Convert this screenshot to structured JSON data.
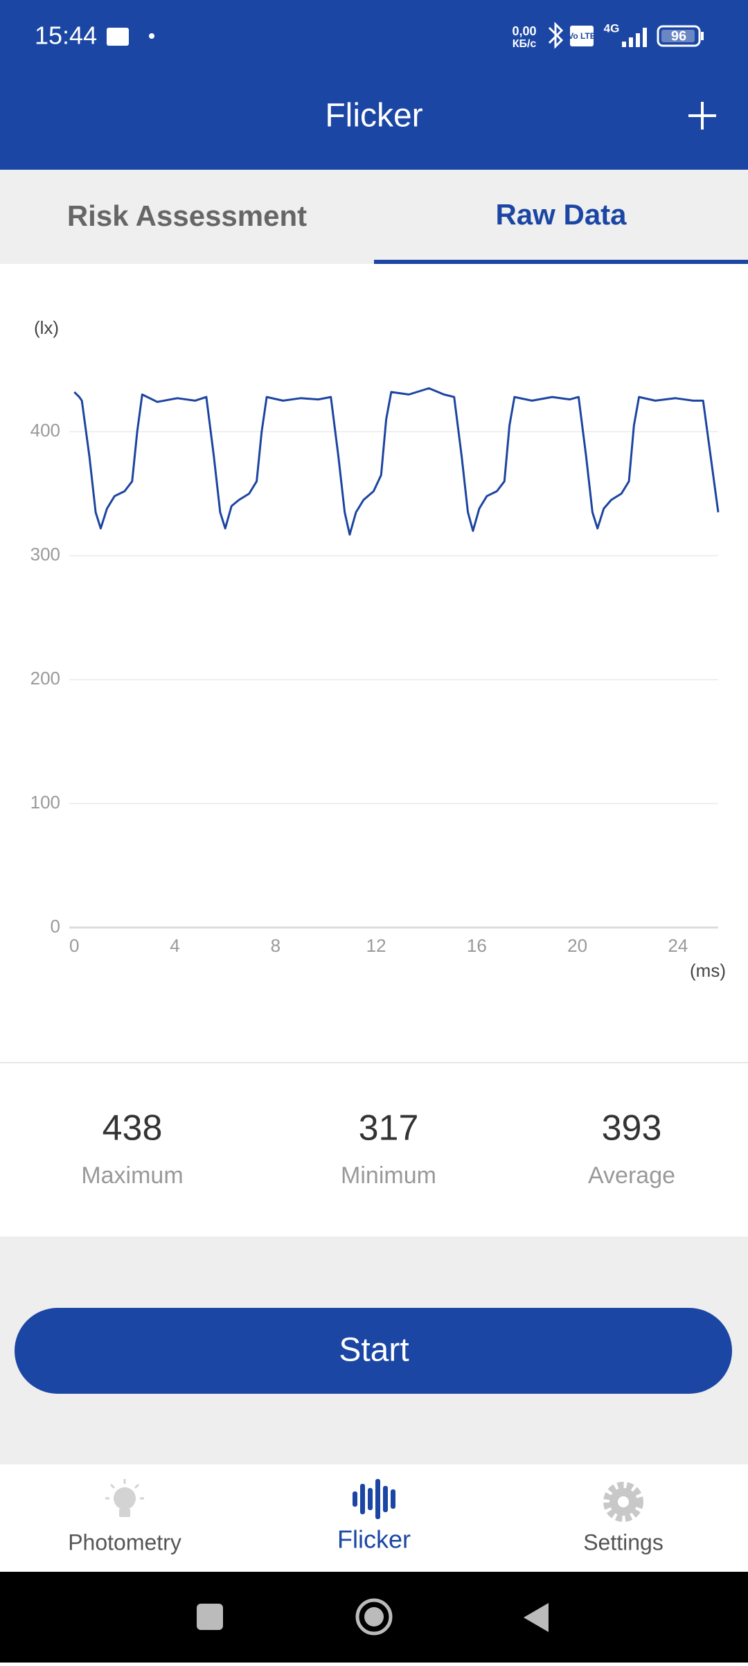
{
  "status_bar": {
    "time": "15:44",
    "speed_value": "0,00",
    "speed_unit": "КБ/с",
    "volte": "Vo LTE",
    "network": "4G",
    "battery": "96"
  },
  "app_bar": {
    "title": "Flicker"
  },
  "tabs": [
    "Risk Assessment",
    "Raw Data"
  ],
  "chart_data": {
    "type": "line",
    "ylabel": "(lx)",
    "xlabel": "(ms)",
    "x": [
      0,
      0.2,
      0.3,
      0.6,
      0.85,
      1.05,
      1.3,
      1.6,
      2.0,
      2.3,
      2.5,
      2.7,
      3.3,
      4.1,
      4.8,
      5.25,
      5.55,
      5.8,
      6.0,
      6.25,
      6.55,
      6.95,
      7.25,
      7.45,
      7.65,
      8.3,
      9.0,
      9.7,
      10.2,
      10.5,
      10.75,
      10.95,
      11.2,
      11.5,
      11.9,
      12.2,
      12.4,
      12.6,
      13.3,
      14.1,
      14.7,
      15.1,
      15.4,
      15.65,
      15.85,
      16.1,
      16.4,
      16.8,
      17.1,
      17.3,
      17.5,
      18.2,
      19.0,
      19.7,
      20.05,
      20.35,
      20.6,
      20.8,
      21.05,
      21.35,
      21.75,
      22.05,
      22.25,
      22.45,
      23.1,
      23.9,
      24.6,
      25.0,
      25.3,
      25.6
    ],
    "series": [
      {
        "color": "#1c44a0",
        "values": [
          432,
          428,
          425,
          380,
          335,
          322,
          338,
          348,
          352,
          360,
          400,
          430,
          424,
          427,
          425,
          428,
          380,
          335,
          322,
          340,
          345,
          350,
          360,
          400,
          428,
          425,
          427,
          426,
          428,
          380,
          335,
          317,
          335,
          345,
          352,
          365,
          410,
          432,
          430,
          435,
          430,
          428,
          380,
          335,
          320,
          338,
          348,
          352,
          360,
          405,
          428,
          425,
          428,
          426,
          428,
          380,
          335,
          322,
          338,
          345,
          350,
          360,
          405,
          428,
          425,
          427,
          425,
          425,
          380,
          335
        ]
      }
    ],
    "xlim": [
      -0.2,
      25.6
    ],
    "ylim": [
      0,
      480
    ],
    "xticks": [
      0,
      4,
      8,
      12,
      16,
      20,
      24
    ],
    "yticks": [
      0,
      100,
      200,
      300,
      400
    ],
    "grid": true
  },
  "stats": [
    {
      "value": 438,
      "label": "Maximum"
    },
    {
      "value": 317,
      "label": "Minimum"
    },
    {
      "value": 393,
      "label": "Average"
    }
  ],
  "button": "Start",
  "nav": [
    "Photometry",
    "Flicker",
    "Settings"
  ]
}
